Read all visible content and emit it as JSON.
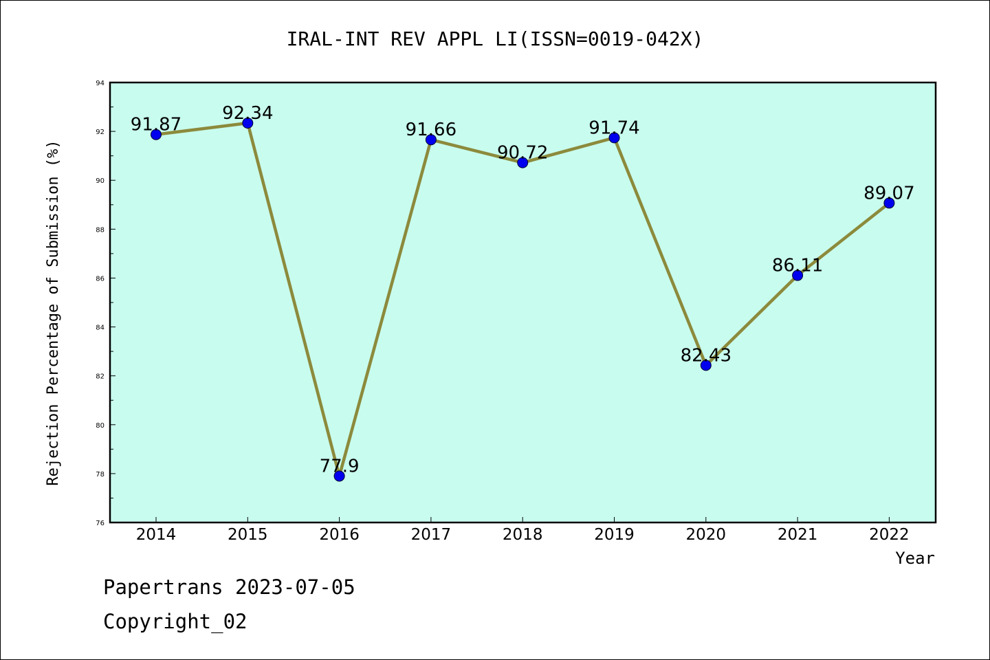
{
  "chart_data": {
    "type": "line",
    "title": "IRAL-INT REV APPL LI(ISSN=0019-042X)",
    "xlabel": "Year",
    "ylabel": "Rejection Percentage of Submission (%)",
    "categories": [
      "2014",
      "2015",
      "2016",
      "2017",
      "2018",
      "2019",
      "2020",
      "2021",
      "2022"
    ],
    "series": [
      {
        "values": [
          91.87,
          92.34,
          77.9,
          91.66,
          90.72,
          91.74,
          82.43,
          86.11,
          89.07
        ],
        "labels": [
          "91.87",
          "92.34",
          "77.9",
          "91.66",
          "90.72",
          "91.74",
          "82.43",
          "86.11",
          "89.07"
        ]
      }
    ],
    "ylim": [
      76,
      94
    ],
    "yticks": [
      "76",
      "78",
      "80",
      "82",
      "84",
      "86",
      "88",
      "90",
      "92",
      "94"
    ],
    "grid": false,
    "colors": {
      "plot_background": "#c8fcee",
      "line": "#8c8a3c",
      "marker": "#0000ee"
    }
  },
  "footer": {
    "line1": "Papertrans 2023-07-05",
    "line2": "Copyright_02"
  }
}
